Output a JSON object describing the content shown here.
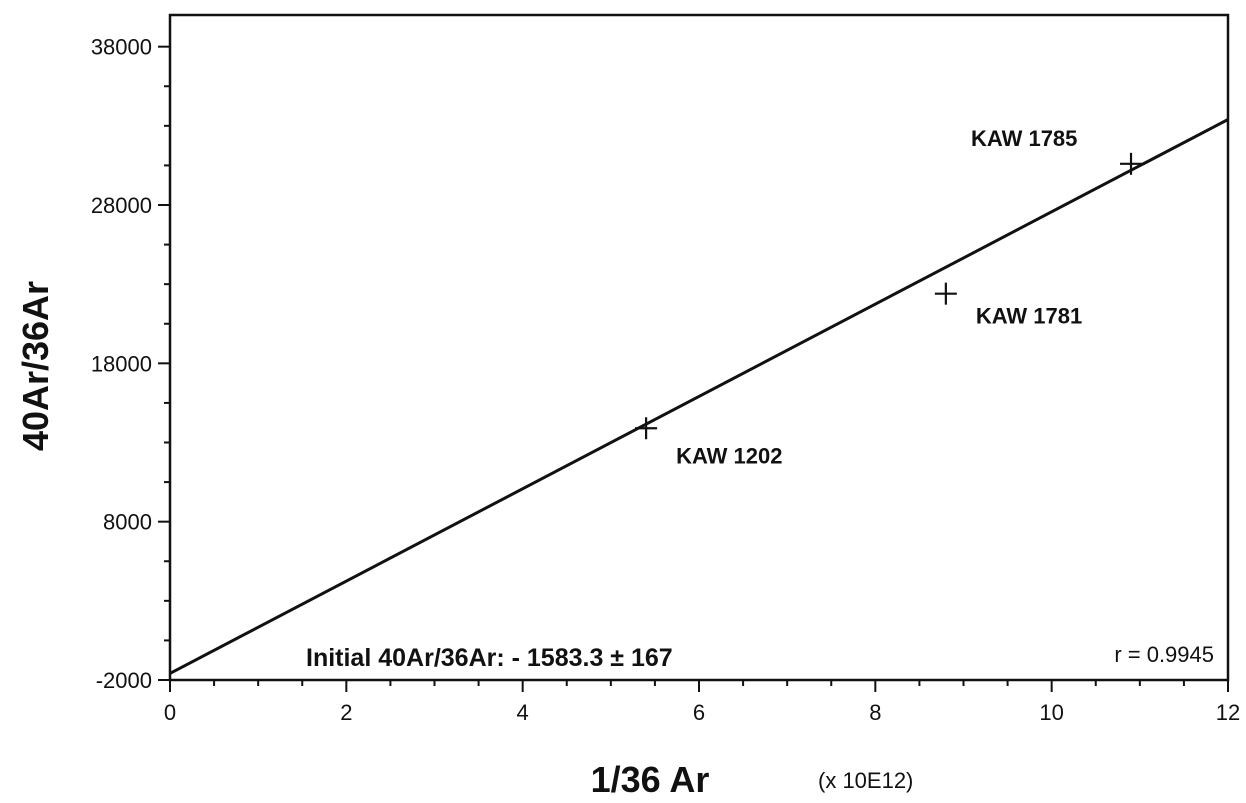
{
  "chart_data": {
    "type": "scatter",
    "title": "",
    "xlabel": "1/36 Ar",
    "xunit": "(x 10E12)",
    "ylabel": "40Ar/36Ar",
    "xlim": [
      0,
      12
    ],
    "ylim": [
      -2000,
      40000
    ],
    "x_ticks": [
      0,
      2,
      4,
      6,
      8,
      10,
      12
    ],
    "x_minor_step": 0.5,
    "y_ticks": [
      -2000,
      8000,
      18000,
      28000,
      38000
    ],
    "y_minor_step": 2500,
    "grid": false,
    "points": [
      {
        "label": "KAW 1202",
        "x": 5.4,
        "y": 13900
      },
      {
        "label": "KAW 1781",
        "x": 8.8,
        "y": 22400
      },
      {
        "label": "KAW 1785",
        "x": 10.9,
        "y": 30600
      }
    ],
    "fit_line": {
      "x": [
        0,
        12
      ],
      "y": [
        -1583.3,
        33400
      ]
    },
    "annotations": {
      "initial_ratio": "Initial 40Ar/36Ar: - 1583.3 ± 167",
      "correlation": "r = 0.9945"
    }
  }
}
